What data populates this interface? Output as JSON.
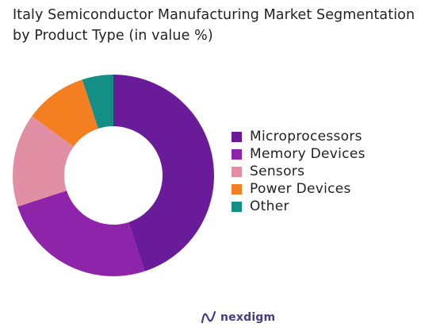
{
  "title_line1": "Italy Semiconductor Manufacturing Market Segmentation",
  "title_line2": "by Product Type (in value %)",
  "brand_name": "nexdigm",
  "chart_data": {
    "type": "pie",
    "subtype": "donut",
    "title": "Italy Semiconductor Manufacturing Market Segmentation by Product Type (in value %)",
    "legend_placement": "right",
    "start_angle": "12 o'clock",
    "direction": "clockwise",
    "categories": [
      "Microprocessors",
      "Memory Devices",
      "Sensors",
      "Power Devices",
      "Other"
    ],
    "values": [
      45,
      25,
      15,
      10,
      5
    ],
    "colors": [
      "#6a1b9a",
      "#8e24aa",
      "#e08fa4",
      "#f47f20",
      "#138f86"
    ]
  }
}
